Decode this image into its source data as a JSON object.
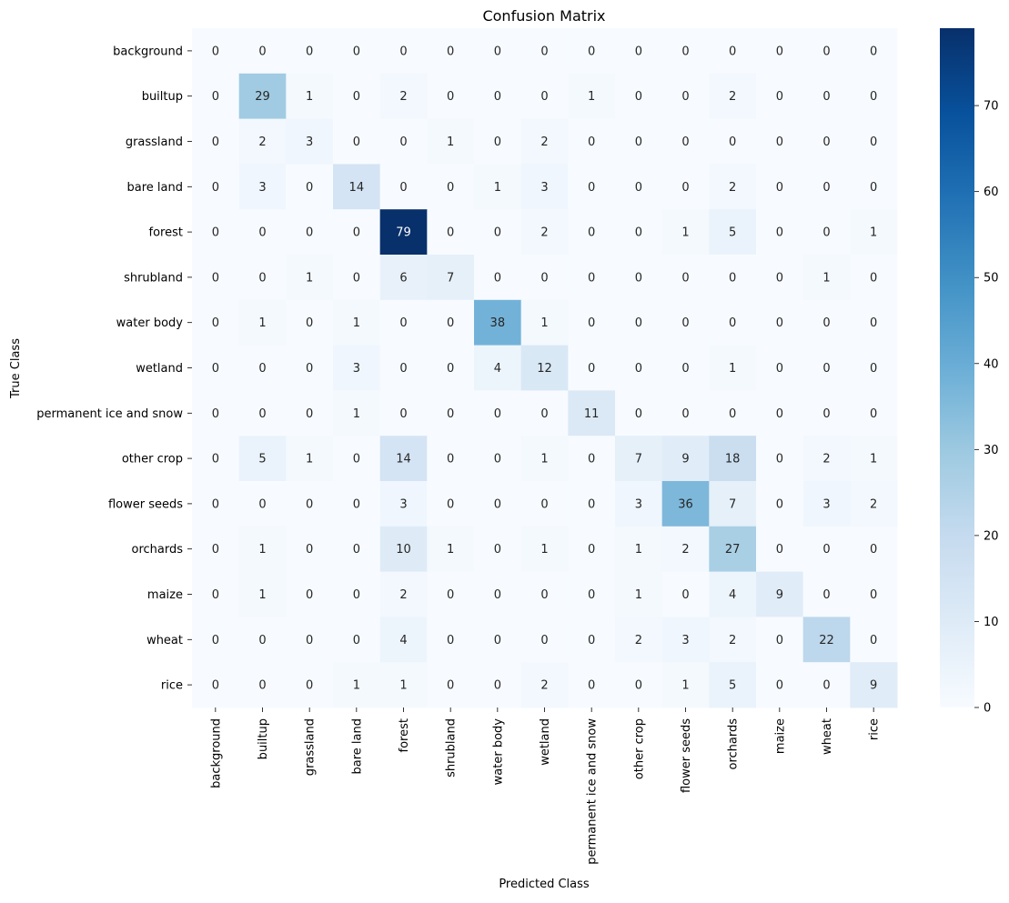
{
  "chart_data": {
    "type": "heatmap",
    "title": "Confusion Matrix",
    "xlabel": "Predicted Class",
    "ylabel": "True Class",
    "classes": [
      "background",
      "builtup",
      "grassland",
      "bare land",
      "forest",
      "shrubland",
      "water body",
      "wetland",
      "permanent ice and snow",
      "other crop",
      "flower seeds",
      "orchards",
      "maize",
      "wheat",
      "rice"
    ],
    "matrix": [
      [
        0,
        0,
        0,
        0,
        0,
        0,
        0,
        0,
        0,
        0,
        0,
        0,
        0,
        0,
        0
      ],
      [
        0,
        29,
        1,
        0,
        2,
        0,
        0,
        0,
        1,
        0,
        0,
        2,
        0,
        0,
        0
      ],
      [
        0,
        2,
        3,
        0,
        0,
        1,
        0,
        2,
        0,
        0,
        0,
        0,
        0,
        0,
        0
      ],
      [
        0,
        3,
        0,
        14,
        0,
        0,
        1,
        3,
        0,
        0,
        0,
        2,
        0,
        0,
        0
      ],
      [
        0,
        0,
        0,
        0,
        79,
        0,
        0,
        2,
        0,
        0,
        1,
        5,
        0,
        0,
        1
      ],
      [
        0,
        0,
        1,
        0,
        6,
        7,
        0,
        0,
        0,
        0,
        0,
        0,
        0,
        1,
        0
      ],
      [
        0,
        1,
        0,
        1,
        0,
        0,
        38,
        1,
        0,
        0,
        0,
        0,
        0,
        0,
        0
      ],
      [
        0,
        0,
        0,
        3,
        0,
        0,
        4,
        12,
        0,
        0,
        0,
        1,
        0,
        0,
        0
      ],
      [
        0,
        0,
        0,
        1,
        0,
        0,
        0,
        0,
        11,
        0,
        0,
        0,
        0,
        0,
        0
      ],
      [
        0,
        5,
        1,
        0,
        14,
        0,
        0,
        1,
        0,
        7,
        9,
        18,
        0,
        2,
        1
      ],
      [
        0,
        0,
        0,
        0,
        3,
        0,
        0,
        0,
        0,
        3,
        36,
        7,
        0,
        3,
        2
      ],
      [
        0,
        1,
        0,
        0,
        10,
        1,
        0,
        1,
        0,
        1,
        2,
        27,
        0,
        0,
        0
      ],
      [
        0,
        1,
        0,
        0,
        2,
        0,
        0,
        0,
        0,
        1,
        0,
        4,
        9,
        0,
        0
      ],
      [
        0,
        0,
        0,
        0,
        4,
        0,
        0,
        0,
        0,
        2,
        3,
        2,
        0,
        22,
        0
      ],
      [
        0,
        0,
        0,
        1,
        1,
        0,
        0,
        2,
        0,
        0,
        1,
        5,
        0,
        0,
        9
      ]
    ],
    "colormap": "Blues",
    "vmin": 0,
    "vmax": 79,
    "colorbar_ticks": [
      0,
      10,
      20,
      30,
      40,
      50,
      60,
      70
    ]
  }
}
